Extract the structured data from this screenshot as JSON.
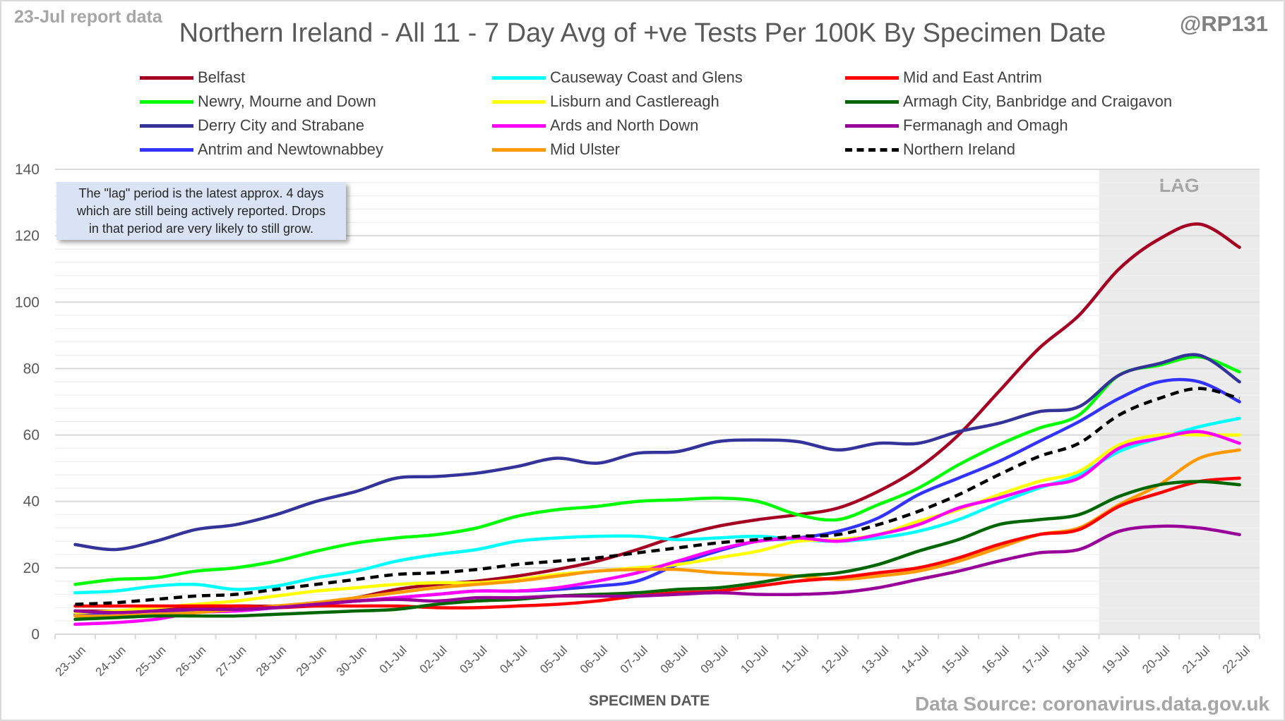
{
  "header": {
    "report_label": "23-Jul report data",
    "handle": "@RP131",
    "source": "Data Source: coronavirus.data.gov.uk"
  },
  "note": {
    "line1": "The \"lag\" period is the latest approx. 4 days",
    "line2": "which are still being actively reported.  Drops",
    "line3": "in that period are very likely to still grow."
  },
  "chart_data": {
    "type": "line",
    "title": "Northern Ireland - All 11 - 7 Day Avg of +ve Tests Per 100K By Specimen Date",
    "xlabel": "SPECIMEN DATE",
    "ylabel": "",
    "ylim": [
      0,
      140
    ],
    "yticks": [
      0,
      20,
      40,
      60,
      80,
      100,
      120,
      140
    ],
    "grid": "horizontal, major every 20 and minor every 4",
    "legend_position": "top",
    "lag_label": "LAG",
    "lag_start": "19-Jul",
    "lag_end": "22-Jul",
    "categories": [
      "23-Jun",
      "24-Jun",
      "25-Jun",
      "26-Jun",
      "27-Jun",
      "28-Jun",
      "29-Jun",
      "30-Jun",
      "01-Jul",
      "02-Jul",
      "03-Jul",
      "04-Jul",
      "05-Jul",
      "06-Jul",
      "07-Jul",
      "08-Jul",
      "09-Jul",
      "10-Jul",
      "11-Jul",
      "12-Jul",
      "13-Jul",
      "14-Jul",
      "15-Jul",
      "16-Jul",
      "17-Jul",
      "18-Jul",
      "19-Jul",
      "20-Jul",
      "21-Jul",
      "22-Jul"
    ],
    "series": [
      {
        "name": "Belfast",
        "color": "#a50021",
        "dash": false,
        "values": [
          7,
          7,
          7.5,
          8,
          8.5,
          8.5,
          9.5,
          11,
          13.5,
          15,
          16,
          17.5,
          19.5,
          22,
          25.5,
          29.5,
          32.5,
          34.5,
          36,
          38,
          43,
          50,
          60,
          73,
          86,
          96,
          110,
          119,
          123.5,
          116.5
        ]
      },
      {
        "name": "Newry, Mourne and Down",
        "color": "#00ff00",
        "dash": false,
        "values": [
          15,
          16.5,
          17,
          19,
          20,
          22,
          25,
          27.5,
          29,
          30,
          32,
          35.5,
          37.5,
          38.5,
          40,
          40.5,
          41,
          40,
          36,
          34.5,
          39,
          44,
          51,
          57,
          62,
          66,
          78,
          81,
          83.5,
          79
        ]
      },
      {
        "name": "Derry City and Strabane",
        "color": "#333399",
        "dash": false,
        "values": [
          27,
          25.5,
          28,
          31.5,
          33,
          36,
          40,
          43,
          47,
          47.5,
          48.5,
          50.5,
          53,
          51.5,
          54.5,
          55,
          58,
          58.5,
          58,
          55.5,
          57.5,
          57.5,
          61,
          63.5,
          67,
          68.5,
          78,
          81.5,
          84,
          76
        ]
      },
      {
        "name": "Antrim and Newtownabbey",
        "color": "#3333ff",
        "dash": false,
        "values": [
          6,
          6.5,
          7,
          7,
          7,
          8,
          9,
          10,
          11,
          12,
          13,
          13,
          13.5,
          14.5,
          16,
          21,
          25,
          28,
          29,
          31,
          35,
          42,
          47,
          52,
          58,
          64,
          71,
          76,
          76,
          70
        ]
      },
      {
        "name": "Causeway Coast and Glens",
        "color": "#00ffff",
        "dash": false,
        "values": [
          12.5,
          13,
          14.5,
          15,
          13.5,
          14.5,
          17,
          19,
          22,
          24,
          25.5,
          28,
          29,
          29.5,
          29.5,
          28.5,
          29,
          29.5,
          28.5,
          28,
          29,
          31,
          34.5,
          39.5,
          44,
          48,
          55,
          59,
          62.5,
          65
        ]
      },
      {
        "name": "Lisburn and Castlereagh",
        "color": "#ffff00",
        "dash": false,
        "values": [
          6.5,
          7,
          8,
          9,
          10,
          11.5,
          13,
          14,
          15,
          15.5,
          15.5,
          16.5,
          18,
          19,
          20,
          21,
          23,
          25,
          28,
          28.5,
          30,
          34,
          37.5,
          42,
          46,
          49,
          57,
          60,
          60,
          60
        ]
      },
      {
        "name": "Ards and North Down",
        "color": "#ff00ff",
        "dash": false,
        "values": [
          3,
          3.5,
          4.5,
          6.5,
          7,
          8,
          9,
          10,
          11,
          12,
          13,
          13,
          14,
          16,
          18.5,
          22,
          25.5,
          28,
          29,
          28,
          30,
          33,
          38,
          41,
          44.5,
          47,
          56,
          59,
          61,
          57.5
        ]
      },
      {
        "name": "Mid Ulster",
        "color": "#ff9900",
        "dash": false,
        "values": [
          5.5,
          5.5,
          6,
          6.5,
          7.5,
          8.5,
          9.5,
          11,
          12.5,
          14,
          15,
          16,
          17.5,
          19,
          19.5,
          19.5,
          18.5,
          18,
          17.5,
          16.5,
          17.5,
          19,
          22,
          26,
          30,
          32,
          39,
          45,
          53,
          55.5
        ]
      },
      {
        "name": "Mid and East Antrim",
        "color": "#ff0000",
        "dash": false,
        "values": [
          8.5,
          8.5,
          8.5,
          8.5,
          8.5,
          8,
          8.5,
          8.5,
          8.5,
          8,
          8,
          8.5,
          9,
          10,
          11.5,
          12.5,
          13,
          14.5,
          16,
          17,
          18.5,
          20,
          23,
          27,
          30,
          31.5,
          38.5,
          42.5,
          46,
          47
        ]
      },
      {
        "name": "Armagh City, Banbridge and Craigavon",
        "color": "#006600",
        "dash": false,
        "values": [
          4.5,
          5,
          5.5,
          5.5,
          5.5,
          6,
          6.5,
          7,
          7.5,
          9,
          10,
          10.5,
          11.5,
          12,
          12.5,
          13.5,
          14,
          15.5,
          17.5,
          18.5,
          21,
          25,
          28.5,
          33,
          34.5,
          36,
          41.5,
          45,
          46,
          45
        ]
      },
      {
        "name": "Fermanagh and Omagh",
        "color": "#990099",
        "dash": false,
        "values": [
          7,
          6.5,
          7,
          7.5,
          7.5,
          8,
          9,
          10,
          10.5,
          10,
          11,
          11,
          11.5,
          11.5,
          11.5,
          12,
          12.5,
          12,
          12,
          12.5,
          14,
          16.5,
          19,
          22,
          24.5,
          25.5,
          31,
          32.5,
          32,
          30
        ]
      },
      {
        "name": "Northern Ireland",
        "color": "#000000",
        "dash": true,
        "values": [
          9,
          9.5,
          10.5,
          11.5,
          12,
          13.5,
          15,
          16.5,
          18,
          18.5,
          19.5,
          21,
          22,
          23,
          24.5,
          26,
          27.5,
          28.5,
          29.5,
          30,
          33,
          37,
          42,
          48,
          53.5,
          57.5,
          66,
          71,
          74,
          71
        ]
      }
    ]
  }
}
